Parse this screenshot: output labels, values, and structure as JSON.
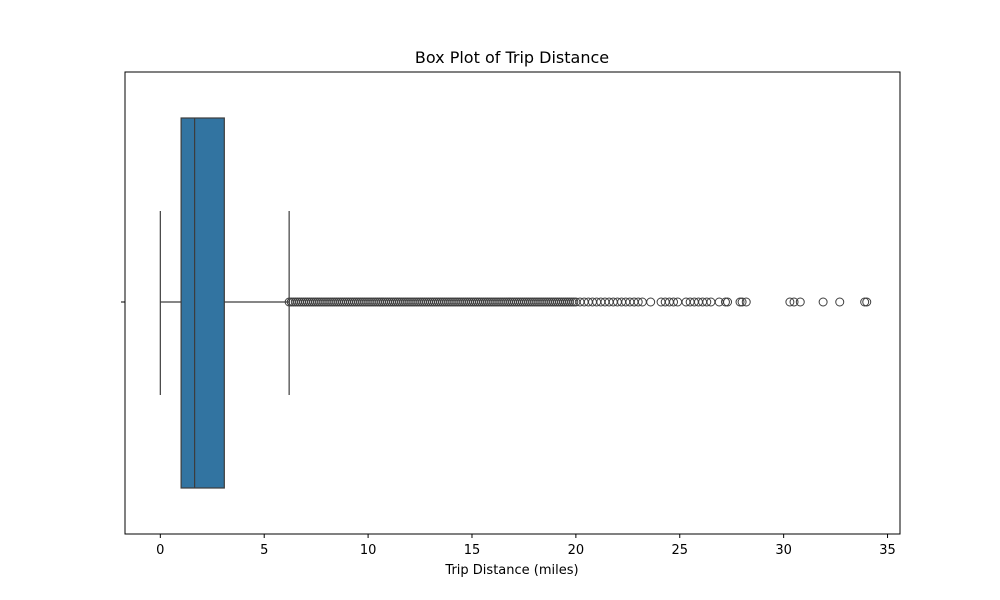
{
  "chart_data": {
    "type": "box",
    "title": "Box Plot of Trip Distance",
    "xlabel": "Trip Distance (miles)",
    "ylabel": "",
    "orientation": "horizontal",
    "xlim": [
      -1.7,
      35.6
    ],
    "xticks": [
      0,
      5,
      10,
      15,
      20,
      25,
      30,
      35
    ],
    "xtick_labels": [
      "0",
      "5",
      "10",
      "15",
      "20",
      "25",
      "30",
      "35"
    ],
    "box": {
      "whisker_low": 0.0,
      "q1": 1.0,
      "median": 1.65,
      "q3": 3.08,
      "whisker_high": 6.2
    },
    "outlier_dense_range": [
      6.2,
      20.0
    ],
    "outliers": [
      20.2,
      20.4,
      20.6,
      20.8,
      21.0,
      21.2,
      21.4,
      21.6,
      21.8,
      22.0,
      22.2,
      22.4,
      22.6,
      22.8,
      23.0,
      23.2,
      23.6,
      24.1,
      24.3,
      24.5,
      24.7,
      24.9,
      25.3,
      25.5,
      25.7,
      25.9,
      26.1,
      26.3,
      26.5,
      26.9,
      27.2,
      27.3,
      27.9,
      28.0,
      28.2,
      30.3,
      30.5,
      30.8,
      31.9,
      32.7,
      33.9,
      34.0
    ],
    "colors": {
      "box_fill": "#3274a1",
      "line": "#3d3d3d",
      "axis": "#000000"
    }
  }
}
